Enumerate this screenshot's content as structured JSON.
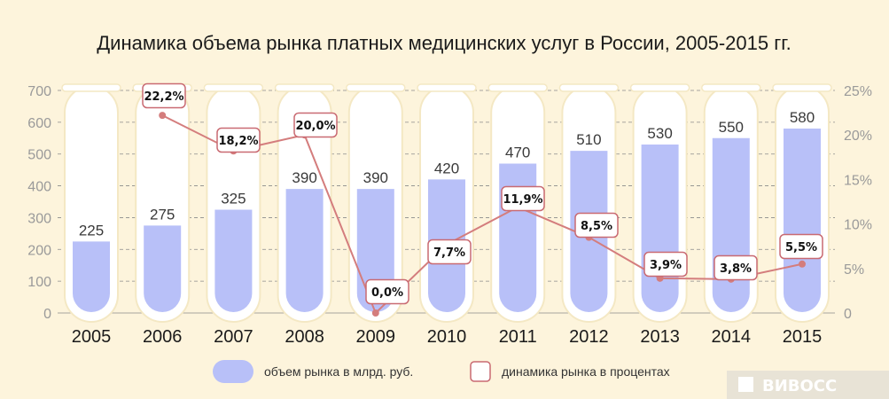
{
  "chart_data": {
    "type": "bar",
    "title": "Динамика объема рынка платных медицинских услуг в России, 2005-2015 гг.",
    "categories": [
      "2005",
      "2006",
      "2007",
      "2008",
      "2009",
      "2010",
      "2011",
      "2012",
      "2013",
      "2014",
      "2015"
    ],
    "series": [
      {
        "name": "объем рынка в млрд. руб.",
        "type": "bar",
        "axis": "left",
        "values": [
          225,
          275,
          325,
          390,
          390,
          420,
          470,
          510,
          530,
          550,
          580
        ],
        "value_labels": [
          "225",
          "275",
          "325",
          "390",
          "390",
          "420",
          "470",
          "510",
          "530",
          "550",
          "580"
        ]
      },
      {
        "name": "динамика рынка в процентах",
        "type": "line",
        "axis": "right",
        "values": [
          null,
          22.2,
          18.2,
          20.0,
          0.0,
          7.7,
          11.9,
          8.5,
          3.9,
          3.8,
          5.5
        ],
        "value_labels": [
          "",
          "22,2%",
          "18,2%",
          "20,0%",
          "0,0%",
          "7,7%",
          "11,9%",
          "8,5%",
          "3,9%",
          "3,8%",
          "5,5%"
        ]
      }
    ],
    "ylim_left": [
      0,
      700
    ],
    "yticks_left": [
      "0",
      "100",
      "200",
      "300",
      "400",
      "500",
      "600",
      "700"
    ],
    "ylim_right": [
      0,
      25
    ],
    "yticks_right": [
      "0",
      "5%",
      "10%",
      "15%",
      "20%",
      "25%"
    ],
    "grid": true,
    "legend_position": "bottom"
  },
  "watermark": "ВИВОСС",
  "colors": {
    "background": "#fdf4dc",
    "tube": "#ffffff",
    "tube_border": "#f4e8c4",
    "bar": "#b8c0f8",
    "line": "#d47d7d",
    "label_box_border": "#c96a72",
    "grid": "#8a8a8a",
    "watermark_bg": "#e8e3d6"
  }
}
